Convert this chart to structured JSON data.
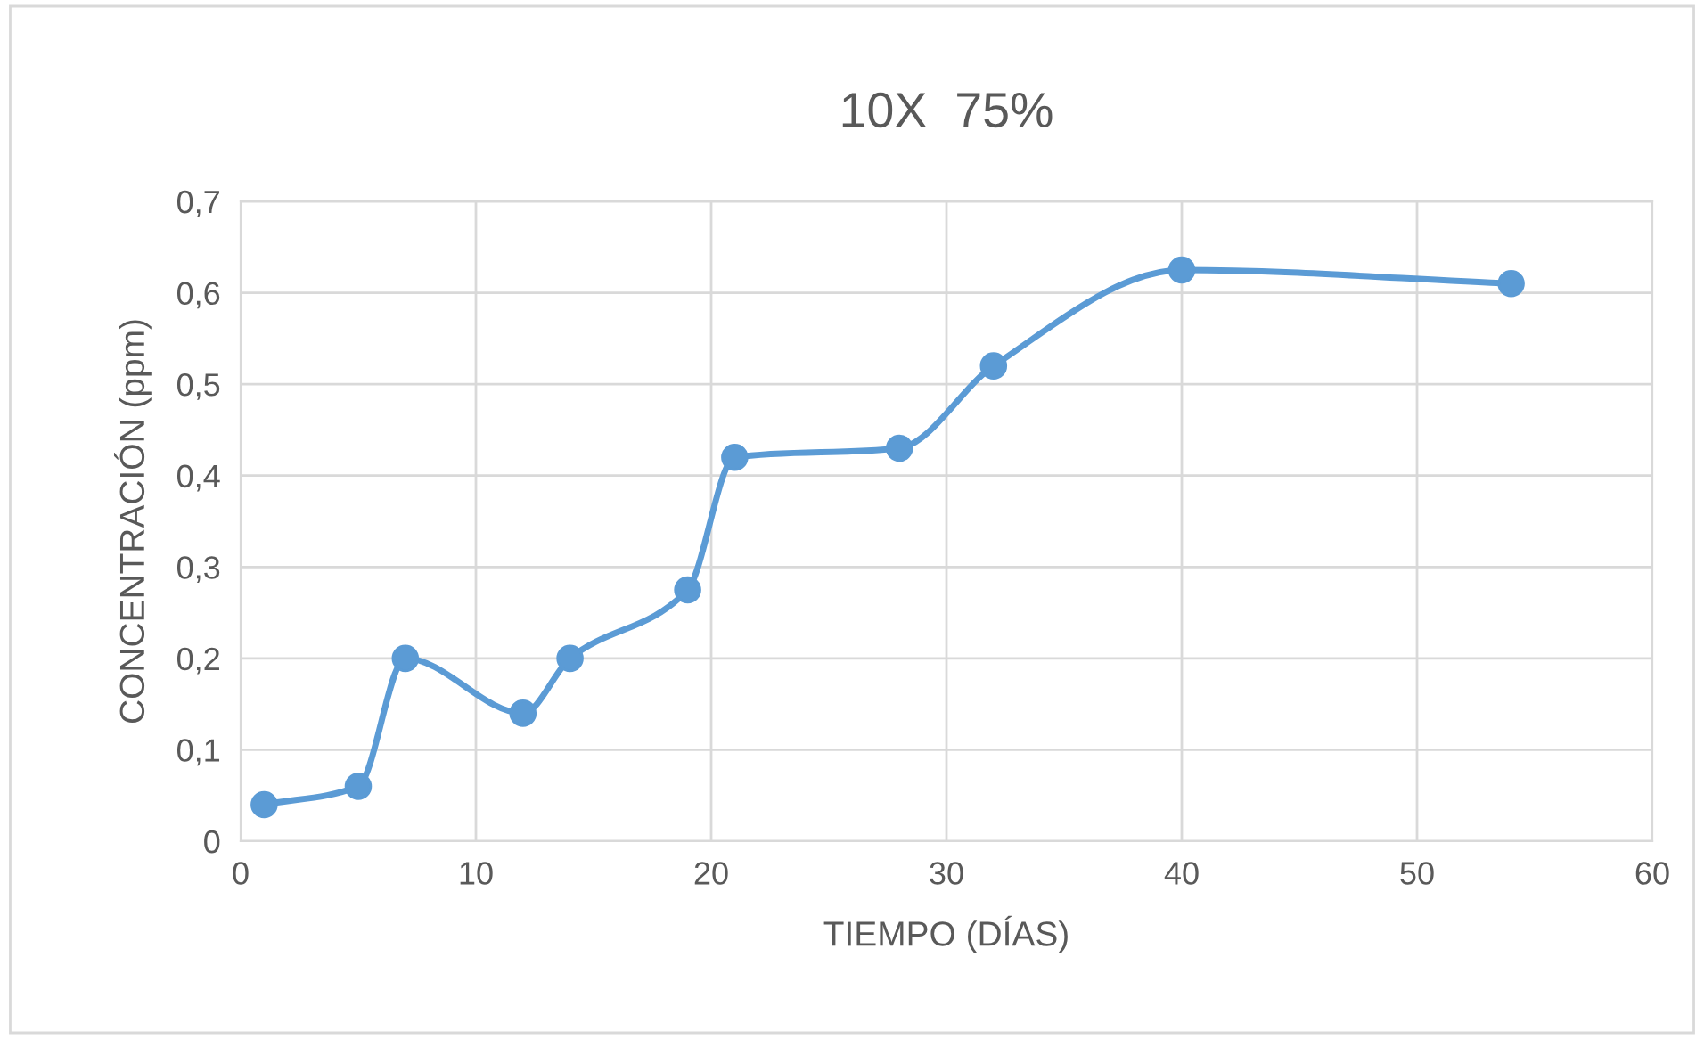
{
  "chart_data": {
    "type": "line",
    "title": "10X  75%",
    "xlabel": "TIEMPO (DÍAS)",
    "ylabel": "CONCENTRACIÓN (ppm)",
    "x": [
      1,
      5,
      7,
      12,
      14,
      19,
      21,
      28,
      32,
      40,
      54
    ],
    "series": [
      {
        "color": "#5b9bd5",
        "values": [
          0.04,
          0.06,
          0.2,
          0.14,
          0.2,
          0.275,
          0.42,
          0.43,
          0.52,
          0.625,
          0.61
        ]
      }
    ],
    "xlim": [
      0,
      60
    ],
    "xticks": [
      0,
      10,
      20,
      30,
      40,
      50,
      60
    ],
    "ylim": [
      0,
      0.7
    ],
    "yticks": [
      {
        "value": 0,
        "label": "0"
      },
      {
        "value": 0.1,
        "label": "0,1"
      },
      {
        "value": 0.2,
        "label": "0,2"
      },
      {
        "value": 0.3,
        "label": "0,3"
      },
      {
        "value": 0.4,
        "label": "0,4"
      },
      {
        "value": 0.5,
        "label": "0,5"
      },
      {
        "value": 0.6,
        "label": "0,6"
      },
      {
        "value": 0.7,
        "label": "0,7"
      }
    ],
    "grid": true,
    "marker": "circle",
    "line_style": "solid",
    "legend": false
  }
}
